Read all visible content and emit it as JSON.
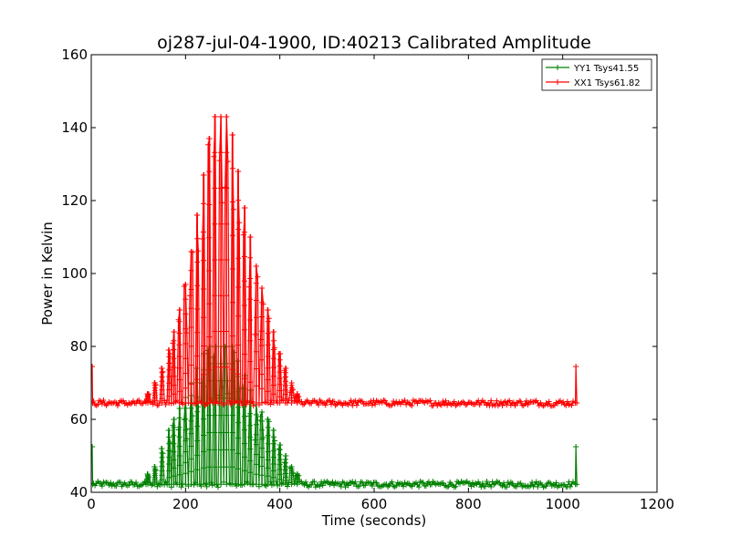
{
  "chart_data": {
    "type": "line",
    "title": "oj287-jul-04-1900, ID:40213 Calibrated Amplitude",
    "xlabel": "Time (seconds)",
    "ylabel": "Power in Kelvin",
    "xlim": [
      0,
      1200
    ],
    "ylim": [
      40,
      160
    ],
    "xticks": [
      "0",
      "200",
      "400",
      "600",
      "800",
      "1000",
      "1200"
    ],
    "yticks": [
      "40",
      "60",
      "80",
      "100",
      "120",
      "140",
      "160"
    ],
    "grid": false,
    "legend_position": "top-right",
    "series": [
      {
        "name": "YY1 Tsys41.55",
        "color": "#008000",
        "marker": "+",
        "baseline": 42.2,
        "start_spike": 52.5,
        "end_spike": 52.5,
        "x_range": [
          0,
          1030
        ],
        "scan_peaks": [
          [
            120,
            45
          ],
          [
            135,
            47
          ],
          [
            150,
            52
          ],
          [
            165,
            57
          ],
          [
            175,
            60
          ],
          [
            187,
            63
          ],
          [
            200,
            66
          ],
          [
            212,
            70
          ],
          [
            225,
            74
          ],
          [
            238,
            78
          ],
          [
            250,
            80
          ],
          [
            262,
            80
          ],
          [
            275,
            80
          ],
          [
            287,
            80
          ],
          [
            300,
            80
          ],
          [
            312,
            76
          ],
          [
            325,
            72
          ],
          [
            337,
            68
          ],
          [
            350,
            64
          ],
          [
            362,
            62
          ],
          [
            375,
            60
          ],
          [
            387,
            57
          ],
          [
            400,
            53
          ],
          [
            412,
            50
          ],
          [
            425,
            47
          ],
          [
            437,
            45
          ]
        ]
      },
      {
        "name": "XX1 Tsys61.82",
        "color": "#ff0000",
        "marker": "+",
        "baseline": 64.5,
        "start_spike": 74.5,
        "end_spike": 74.5,
        "x_range": [
          0,
          1030
        ],
        "scan_peaks": [
          [
            120,
            67
          ],
          [
            135,
            70
          ],
          [
            150,
            74
          ],
          [
            165,
            79
          ],
          [
            175,
            84
          ],
          [
            187,
            90
          ],
          [
            200,
            97
          ],
          [
            212,
            106
          ],
          [
            225,
            116
          ],
          [
            238,
            127
          ],
          [
            250,
            137
          ],
          [
            262,
            143
          ],
          [
            275,
            143
          ],
          [
            287,
            143
          ],
          [
            300,
            138
          ],
          [
            312,
            128
          ],
          [
            325,
            118
          ],
          [
            337,
            110
          ],
          [
            350,
            102
          ],
          [
            362,
            96
          ],
          [
            375,
            90
          ],
          [
            387,
            84
          ],
          [
            400,
            78
          ],
          [
            412,
            74
          ],
          [
            425,
            70
          ],
          [
            437,
            67
          ]
        ]
      }
    ]
  }
}
